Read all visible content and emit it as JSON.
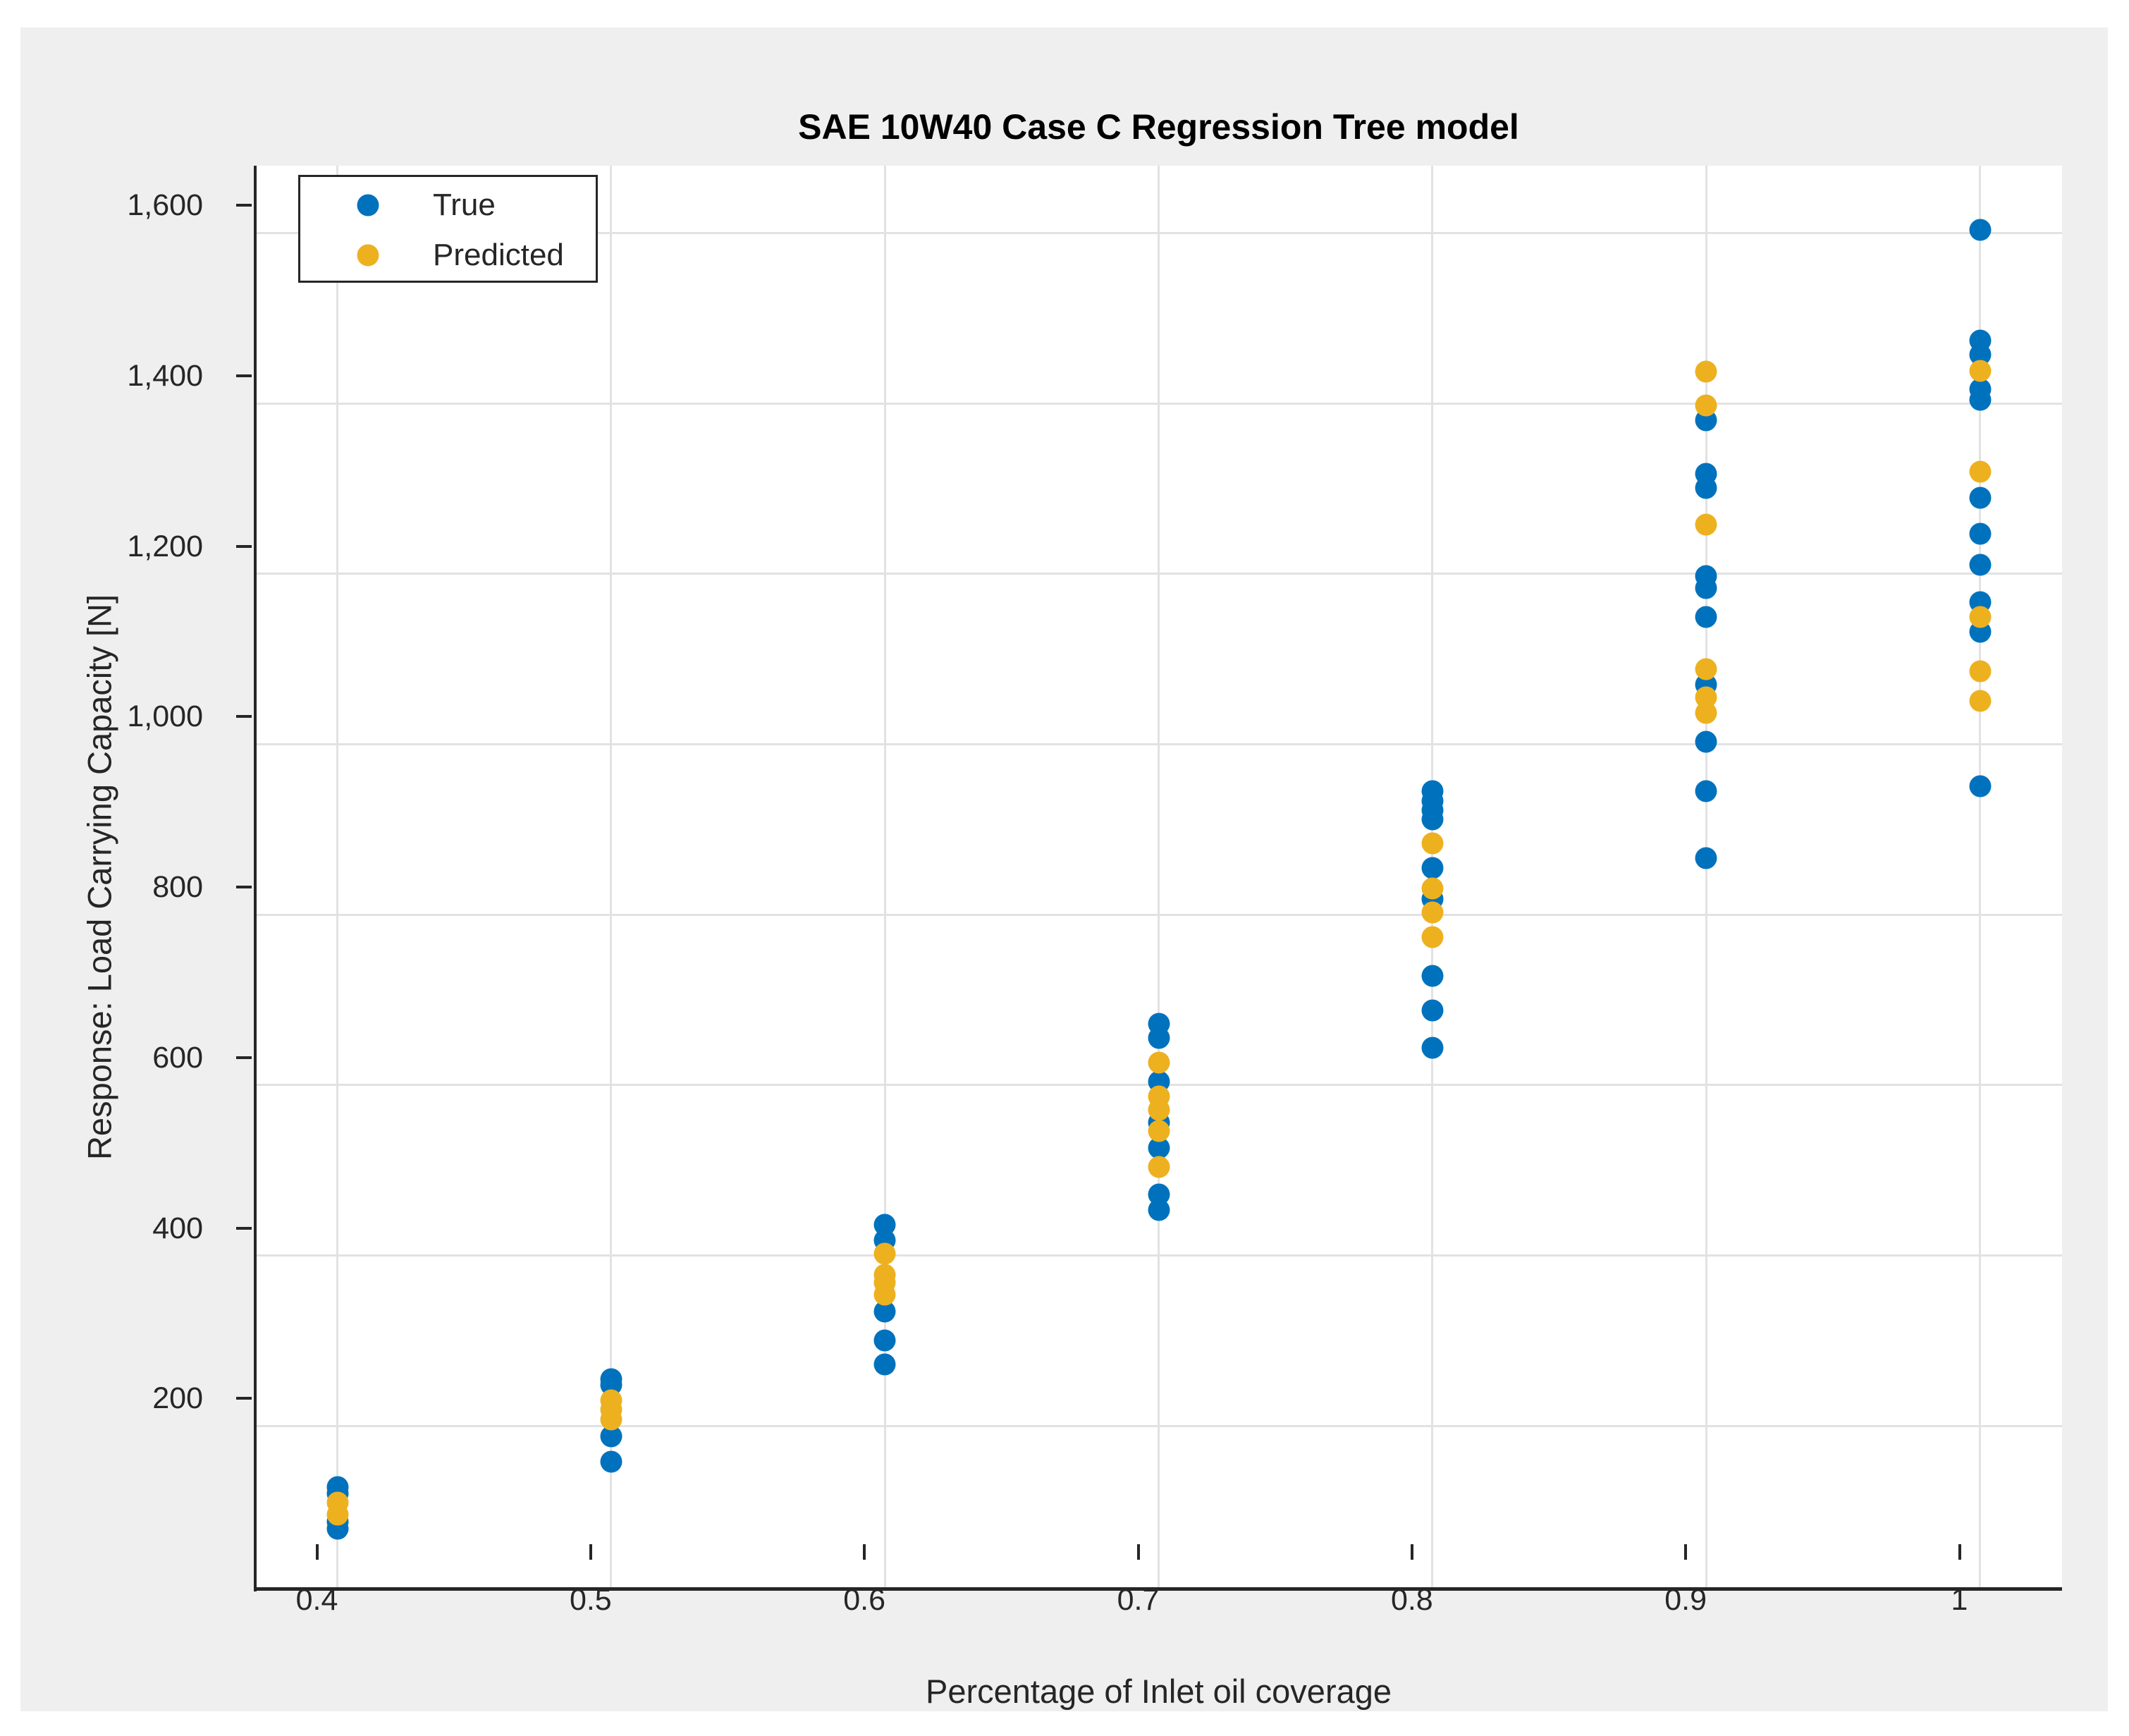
{
  "figure": {
    "page_background": "#FFFFFF",
    "figure_background": "#EFEFEF",
    "plot_background": "#FFFFFF",
    "grid_color": "#E2E2E2",
    "axis_color": "#262626"
  },
  "legend": {
    "position": "top-left",
    "items": [
      {
        "label": "True",
        "color": "#0072BD"
      },
      {
        "label": "Predicted",
        "color": "#EDB120"
      }
    ]
  },
  "chart_data": {
    "type": "scatter",
    "title": "SAE 10W40 Case C Regression Tree model",
    "xlabel": "Percentage of Inlet oil coverage",
    "ylabel": "Response: Load Carrying Capacity [N]",
    "xlim": [
      0.37,
      1.03
    ],
    "ylim": [
      9,
      1679
    ],
    "grid": true,
    "legend_position": "top-left",
    "x_ticks": [
      0.4,
      0.5,
      0.6,
      0.7,
      0.8,
      0.9,
      1
    ],
    "x_tick_labels": [
      "0.4",
      "0.5",
      "0.6",
      "0.7",
      "0.8",
      "0.9",
      "1"
    ],
    "y_ticks": [
      200,
      400,
      600,
      800,
      1000,
      1200,
      1400,
      1600
    ],
    "y_tick_labels": [
      "200",
      "400",
      "600",
      "800",
      "1,000",
      "1,200",
      "1,400",
      "1,600"
    ],
    "marker_size_px": 31,
    "series": [
      {
        "name": "True",
        "color": "#0072BD",
        "points": [
          [
            0.4,
            128
          ],
          [
            0.4,
            121
          ],
          [
            0.4,
            88
          ],
          [
            0.4,
            79
          ],
          [
            0.5,
            255
          ],
          [
            0.5,
            248
          ],
          [
            0.5,
            188
          ],
          [
            0.5,
            158
          ],
          [
            0.6,
            436
          ],
          [
            0.6,
            418
          ],
          [
            0.6,
            334
          ],
          [
            0.6,
            300
          ],
          [
            0.6,
            272
          ],
          [
            0.7,
            672
          ],
          [
            0.7,
            655
          ],
          [
            0.7,
            604
          ],
          [
            0.7,
            556
          ],
          [
            0.7,
            526
          ],
          [
            0.7,
            472
          ],
          [
            0.7,
            453
          ],
          [
            0.8,
            945
          ],
          [
            0.8,
            933
          ],
          [
            0.8,
            923
          ],
          [
            0.8,
            912
          ],
          [
            0.8,
            855
          ],
          [
            0.8,
            818
          ],
          [
            0.8,
            728
          ],
          [
            0.8,
            688
          ],
          [
            0.8,
            644
          ],
          [
            0.9,
            1380
          ],
          [
            0.9,
            1317
          ],
          [
            0.9,
            1301
          ],
          [
            0.9,
            1197
          ],
          [
            0.9,
            1183
          ],
          [
            0.9,
            1149
          ],
          [
            0.9,
            1070
          ],
          [
            0.9,
            1003
          ],
          [
            0.9,
            945
          ],
          [
            0.9,
            866
          ],
          [
            1,
            1604
          ],
          [
            1,
            1474
          ],
          [
            1,
            1457
          ],
          [
            1,
            1417
          ],
          [
            1,
            1404
          ],
          [
            1,
            1289
          ],
          [
            1,
            1247
          ],
          [
            1,
            1211
          ],
          [
            1,
            1167
          ],
          [
            1,
            1132
          ],
          [
            1,
            951
          ]
        ]
      },
      {
        "name": "Predicted",
        "color": "#EDB120",
        "points": [
          [
            0.4,
            110
          ],
          [
            0.4,
            96
          ],
          [
            0.5,
            230
          ],
          [
            0.5,
            219
          ],
          [
            0.5,
            208
          ],
          [
            0.6,
            402
          ],
          [
            0.6,
            377
          ],
          [
            0.6,
            368
          ],
          [
            0.6,
            354
          ],
          [
            0.7,
            626
          ],
          [
            0.7,
            587
          ],
          [
            0.7,
            571
          ],
          [
            0.7,
            546
          ],
          [
            0.7,
            504
          ],
          [
            0.8,
            884
          ],
          [
            0.8,
            831
          ],
          [
            0.8,
            803
          ],
          [
            0.8,
            774
          ],
          [
            0.9,
            1437
          ],
          [
            0.9,
            1398
          ],
          [
            0.9,
            1258
          ],
          [
            0.9,
            1088
          ],
          [
            0.9,
            1055
          ],
          [
            0.9,
            1037
          ],
          [
            1,
            1438
          ],
          [
            1,
            1320
          ],
          [
            1,
            1149
          ],
          [
            1,
            1086
          ],
          [
            1,
            1051
          ]
        ]
      }
    ]
  }
}
